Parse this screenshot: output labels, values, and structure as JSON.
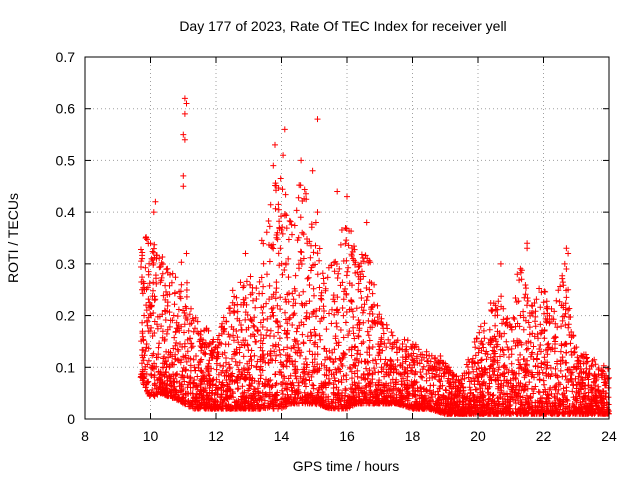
{
  "chart_data": {
    "type": "scatter",
    "title": "Day 177 of 2023, Rate Of TEC Index for receiver yell",
    "xlabel": "GPS time / hours",
    "ylabel": "ROTI / TECUs",
    "xlim": [
      8,
      24
    ],
    "ylim": [
      0,
      0.7
    ],
    "xticks": [
      "8",
      "10",
      "12",
      "14",
      "16",
      "18",
      "20",
      "22",
      "24"
    ],
    "yticks": [
      "0",
      "0.1",
      "0.2",
      "0.3",
      "0.4",
      "0.5",
      "0.6",
      "0.7"
    ],
    "grid": true,
    "marker": "+",
    "marker_color": "#ff0000",
    "envelope": {
      "x": [
        9.7,
        10.0,
        10.3,
        10.7,
        11.0,
        11.3,
        11.7,
        12.0,
        12.5,
        13.0,
        13.5,
        13.8,
        14.0,
        14.3,
        14.6,
        15.0,
        15.5,
        16.0,
        16.3,
        16.7,
        17.0,
        17.5,
        18.0,
        18.5,
        19.0,
        19.5,
        20.0,
        20.3,
        20.7,
        21.0,
        21.3,
        21.6,
        22.0,
        22.3,
        22.6,
        23.0,
        23.5,
        24.0
      ],
      "upper": [
        0.33,
        0.38,
        0.32,
        0.28,
        0.32,
        0.2,
        0.18,
        0.15,
        0.25,
        0.29,
        0.36,
        0.48,
        0.5,
        0.38,
        0.5,
        0.35,
        0.3,
        0.4,
        0.33,
        0.32,
        0.2,
        0.16,
        0.15,
        0.13,
        0.12,
        0.08,
        0.17,
        0.22,
        0.25,
        0.18,
        0.3,
        0.22,
        0.27,
        0.2,
        0.3,
        0.14,
        0.12,
        0.1
      ],
      "lower": [
        0.08,
        0.04,
        0.05,
        0.04,
        0.03,
        0.02,
        0.02,
        0.02,
        0.02,
        0.02,
        0.02,
        0.02,
        0.02,
        0.03,
        0.03,
        0.03,
        0.02,
        0.02,
        0.03,
        0.03,
        0.03,
        0.03,
        0.02,
        0.02,
        0.01,
        0.01,
        0.01,
        0.01,
        0.01,
        0.01,
        0.01,
        0.01,
        0.01,
        0.01,
        0.01,
        0.01,
        0.01,
        0.01
      ]
    },
    "outliers": [
      [
        11.05,
        0.62
      ],
      [
        11.1,
        0.61
      ],
      [
        11.05,
        0.59
      ],
      [
        11.0,
        0.55
      ],
      [
        11.05,
        0.54
      ],
      [
        11.0,
        0.47
      ],
      [
        11.0,
        0.45
      ],
      [
        15.1,
        0.58
      ],
      [
        14.1,
        0.56
      ],
      [
        13.8,
        0.53
      ],
      [
        14.05,
        0.51
      ],
      [
        14.6,
        0.5
      ],
      [
        14.95,
        0.48
      ],
      [
        13.75,
        0.49
      ],
      [
        15.7,
        0.44
      ],
      [
        10.15,
        0.42
      ],
      [
        10.1,
        0.4
      ],
      [
        15.1,
        0.4
      ],
      [
        15.05,
        0.38
      ],
      [
        16.0,
        0.43
      ],
      [
        16.6,
        0.38
      ],
      [
        21.5,
        0.34
      ],
      [
        21.5,
        0.33
      ],
      [
        22.7,
        0.33
      ],
      [
        22.75,
        0.32
      ],
      [
        22.65,
        0.3
      ],
      [
        22.7,
        0.29
      ],
      [
        20.7,
        0.3
      ],
      [
        21.2,
        0.28
      ],
      [
        12.9,
        0.32
      ],
      [
        9.85,
        0.35
      ],
      [
        10.0,
        0.34
      ],
      [
        11.1,
        0.32
      ],
      [
        22.75,
        0.25
      ],
      [
        22.6,
        0.22
      ]
    ]
  }
}
